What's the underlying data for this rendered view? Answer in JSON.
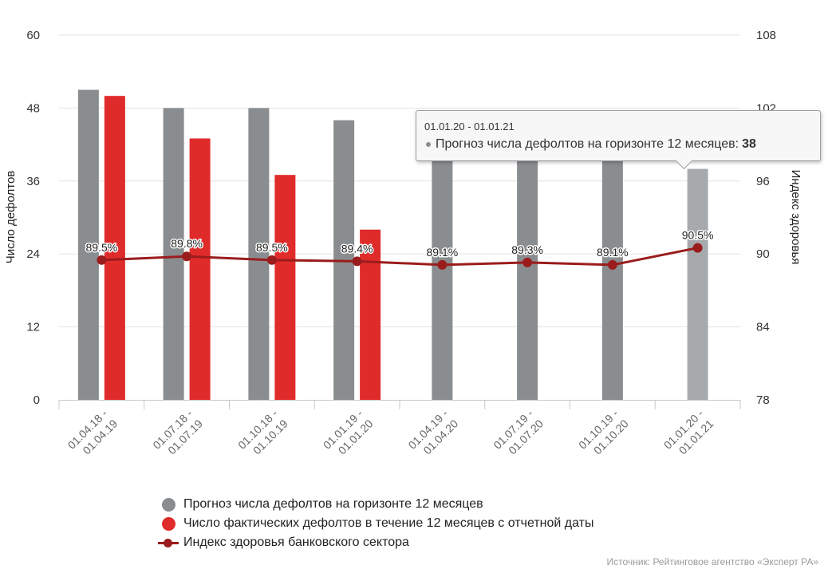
{
  "chart_data": {
    "type": "bar",
    "categories": [
      [
        "01.04.18 -",
        "01.04.19"
      ],
      [
        "01.07.18 -",
        "01.07.19"
      ],
      [
        "01.10.18 -",
        "01.10.19"
      ],
      [
        "01.01.19 -",
        "01.01.20"
      ],
      [
        "01.04.19 -",
        "01.04.20"
      ],
      [
        "01.07.19 -",
        "01.07.20"
      ],
      [
        "01.10.19 -",
        "01.10.20"
      ],
      [
        "01.01.20 -",
        "01.01.21"
      ]
    ],
    "series": [
      {
        "name": "Прогноз числа дефолтов на горизонте 12 месяцев",
        "type": "bar",
        "axis": "left",
        "color": "#8a8d8f",
        "values": [
          51,
          48,
          48,
          46,
          46,
          44,
          45,
          38
        ]
      },
      {
        "name": "Число фактических дефолтов в течение 12 месяцев с отчетной даты",
        "type": "bar",
        "axis": "left",
        "color": "#e02b2b",
        "values": [
          50,
          43,
          37,
          28,
          null,
          null,
          null,
          null
        ]
      },
      {
        "name": "Индекс здоровья банковского сектора",
        "type": "line",
        "axis": "right",
        "color": "#9b1c1c",
        "values": [
          89.5,
          89.8,
          89.5,
          89.4,
          89.1,
          89.3,
          89.1,
          90.5
        ],
        "data_labels": [
          "89.5%",
          "89.8%",
          "89.5%",
          "89.4%",
          "89.1%",
          "89.3%",
          "89.1%",
          "90.5%"
        ]
      }
    ],
    "ylabel": "Число дефолтов",
    "ylabel_right": "Индекс здоровья",
    "ylim": [
      0,
      60
    ],
    "yticks": [
      "0",
      "12",
      "24",
      "36",
      "48",
      "60"
    ],
    "ylim_right": [
      78,
      108
    ],
    "yticks_right": [
      "78",
      "84",
      "90",
      "96",
      "102",
      "108"
    ],
    "grid": true,
    "legend_position": "bottom",
    "highlighted_category": 7
  },
  "legend": {
    "items": [
      {
        "label": "Прогноз числа дефолтов на горизонте 12 месяцев",
        "color": "#8a8d8f",
        "kind": "dot"
      },
      {
        "label": "Число фактических дефолтов в течение 12 месяцев с отчетной даты",
        "color": "#e02b2b",
        "kind": "dot"
      },
      {
        "label": "Индекс здоровья банковского сектора",
        "color": "#9b1c1c",
        "kind": "line"
      }
    ]
  },
  "tooltip": {
    "title": "01.01.20 - 01.01.21",
    "series_label": "Прогноз числа дефолтов на горизонте 12 месяцев:",
    "value": "38",
    "color": "#8a8d8f"
  },
  "source": "Источник: Рейтинговое агентство «Эксперт РА»"
}
